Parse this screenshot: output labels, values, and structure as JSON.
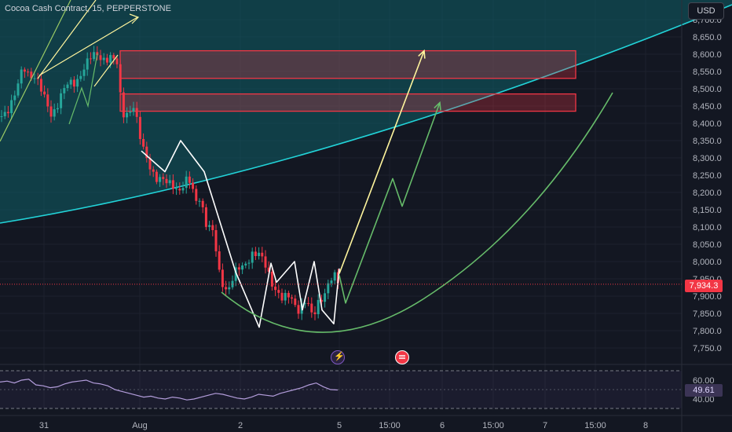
{
  "header": {
    "title": "Cocoa Cash Contract, 15, PEPPERSTONE",
    "currency": "USD"
  },
  "price_axis": {
    "ticks": [
      "8,700.0",
      "8,650.0",
      "8,600.0",
      "8,550.0",
      "8,500.0",
      "8,450.0",
      "8,400.0",
      "8,350.0",
      "8,300.0",
      "8,250.0",
      "8,200.0",
      "8,150.0",
      "8,100.0",
      "8,050.0",
      "8,000.0",
      "7,950.0",
      "7,900.0",
      "7,850.0",
      "7,800.0",
      "7,750.0"
    ],
    "last_price": "7,934.3",
    "last_price_value": 7934.3
  },
  "rsi_axis": {
    "ticks": [
      "60.00",
      "40.00"
    ],
    "value": "49.61"
  },
  "time_axis": {
    "labels": [
      "31",
      "Aug",
      "2",
      "5",
      "15:00",
      "6",
      "15:00",
      "7",
      "15:00",
      "8"
    ]
  },
  "colors": {
    "background": "#131722",
    "bull": "#26a69a",
    "bear": "#f23645",
    "channel_line": "#22d3d8",
    "zone": "#f23645",
    "path_white": "#ffffff",
    "path_yellow": "#fff59d",
    "path_green": "#66bb6a",
    "rsi": "#b39ddb"
  },
  "chart_data": [
    {
      "type": "candlestick",
      "title": "Cocoa Cash Contract, 15, PEPPERSTONE",
      "x_labels": [
        "31",
        "Aug",
        "2",
        "5",
        "15:00",
        "6",
        "15:00",
        "7",
        "15:00",
        "8"
      ],
      "ylim": [
        7725,
        8725
      ],
      "series": [
        {
          "points": [
            [
              0,
              8420
            ],
            [
              20,
              8480
            ],
            [
              30,
              8560
            ],
            [
              45,
              8540
            ],
            [
              55,
              8470
            ],
            [
              65,
              8430
            ],
            [
              80,
              8490
            ],
            [
              95,
              8520
            ],
            [
              105,
              8560
            ],
            [
              115,
              8580
            ],
            [
              125,
              8600
            ],
            [
              140,
              8590
            ],
            [
              150,
              8560
            ],
            [
              155,
              8430
            ],
            [
              170,
              8450
            ],
            [
              180,
              8330
            ],
            [
              190,
              8290
            ],
            [
              200,
              8240
            ],
            [
              210,
              8220
            ],
            [
              220,
              8230
            ],
            [
              230,
              8210
            ],
            [
              240,
              8230
            ],
            [
              250,
              8180
            ],
            [
              255,
              8200
            ],
            [
              262,
              8110
            ],
            [
              272,
              8070
            ],
            [
              280,
              7960
            ],
            [
              290,
              7920
            ],
            [
              300,
              7960
            ],
            [
              310,
              7990
            ],
            [
              320,
              8030
            ],
            [
              330,
              8010
            ],
            [
              340,
              7980
            ],
            [
              350,
              7930
            ],
            [
              360,
              7880
            ],
            [
              370,
              7900
            ],
            [
              380,
              7870
            ],
            [
              390,
              7880
            ],
            [
              398,
              7830
            ],
            [
              405,
              7890
            ],
            [
              415,
              7920
            ],
            [
              425,
              7950
            ],
            [
              432,
              7936
            ]
          ]
        }
      ],
      "zones": [
        {
          "from": 8530,
          "to": 8610,
          "label": ""
        },
        {
          "from": 8435,
          "to": 8485,
          "label": ""
        }
      ],
      "projections": [
        {
          "name": "",
          "color": "white",
          "points": [
            [
              180,
              8320
            ],
            [
              210,
              8260
            ],
            [
              230,
              8350
            ],
            [
              260,
              8260
            ],
            [
              300,
              7970
            ],
            [
              330,
              7810
            ],
            [
              345,
              7995
            ],
            [
              352,
              7940
            ],
            [
              375,
              8000
            ],
            [
              385,
              7860
            ],
            [
              400,
              8000
            ],
            [
              410,
              7860
            ],
            [
              425,
              7820
            ],
            [
              432,
              7980
            ]
          ]
        },
        {
          "name": "",
          "color": "yellow",
          "points": [
            [
              432,
              7965
            ],
            [
              540,
              8610
            ]
          ]
        },
        {
          "name": "",
          "color": "green",
          "points": [
            [
              432,
              7960
            ],
            [
              440,
              7880
            ],
            [
              500,
              8240
            ],
            [
              512,
              8160
            ],
            [
              560,
              8460
            ]
          ]
        }
      ],
      "grid": true
    },
    {
      "type": "line",
      "title": "RSI",
      "ylim": [
        25,
        75
      ],
      "levels": [
        70,
        30
      ],
      "series": [
        {
          "name": "",
          "values": [
            58,
            59,
            57,
            60,
            61,
            55,
            54,
            52,
            53,
            56,
            58,
            59,
            60,
            57,
            56,
            54,
            50,
            48,
            46,
            44,
            42,
            43,
            41,
            40,
            42,
            41,
            39,
            40,
            42,
            44,
            46,
            45,
            43,
            41,
            40,
            42,
            45,
            44,
            43,
            46,
            48,
            50,
            52,
            55,
            57,
            53,
            50,
            49.61
          ]
        }
      ]
    }
  ]
}
